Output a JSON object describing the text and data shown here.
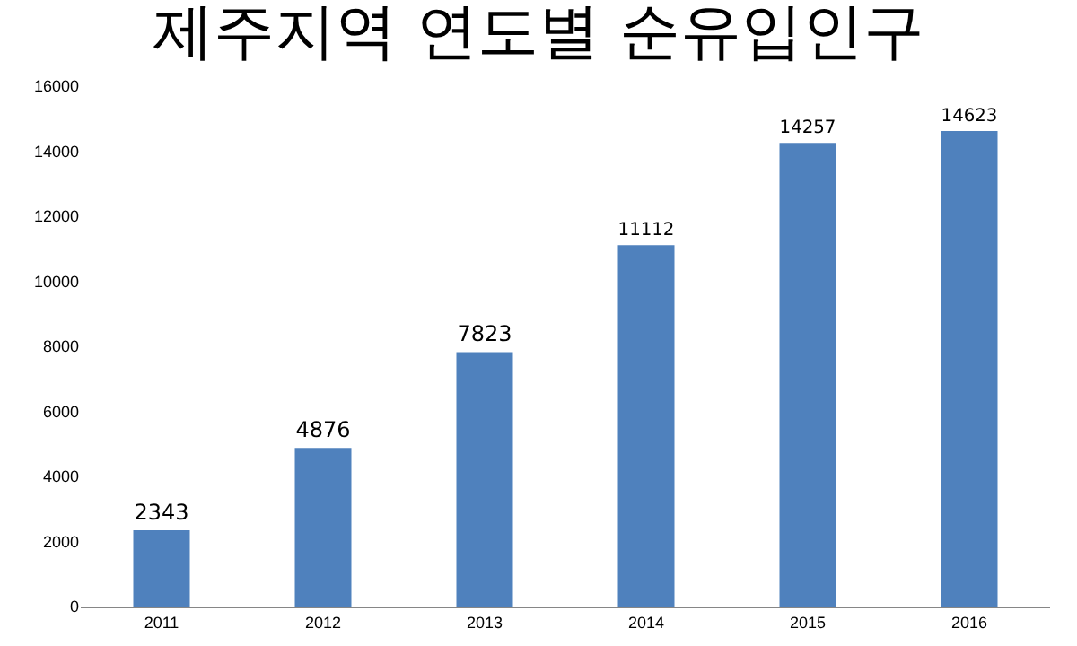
{
  "chart_data": {
    "type": "bar",
    "title": "제주지역 연도별 순유입인구",
    "categories": [
      "2011",
      "2012",
      "2013",
      "2014",
      "2015",
      "2016"
    ],
    "values": [
      2343,
      4876,
      7823,
      11112,
      14257,
      14623
    ],
    "color": "#4f81bd",
    "ylim": [
      0,
      16000
    ],
    "yticks": [
      0,
      2000,
      4000,
      6000,
      8000,
      10000,
      12000,
      14000,
      16000
    ],
    "grid": false,
    "data_labels": true
  }
}
